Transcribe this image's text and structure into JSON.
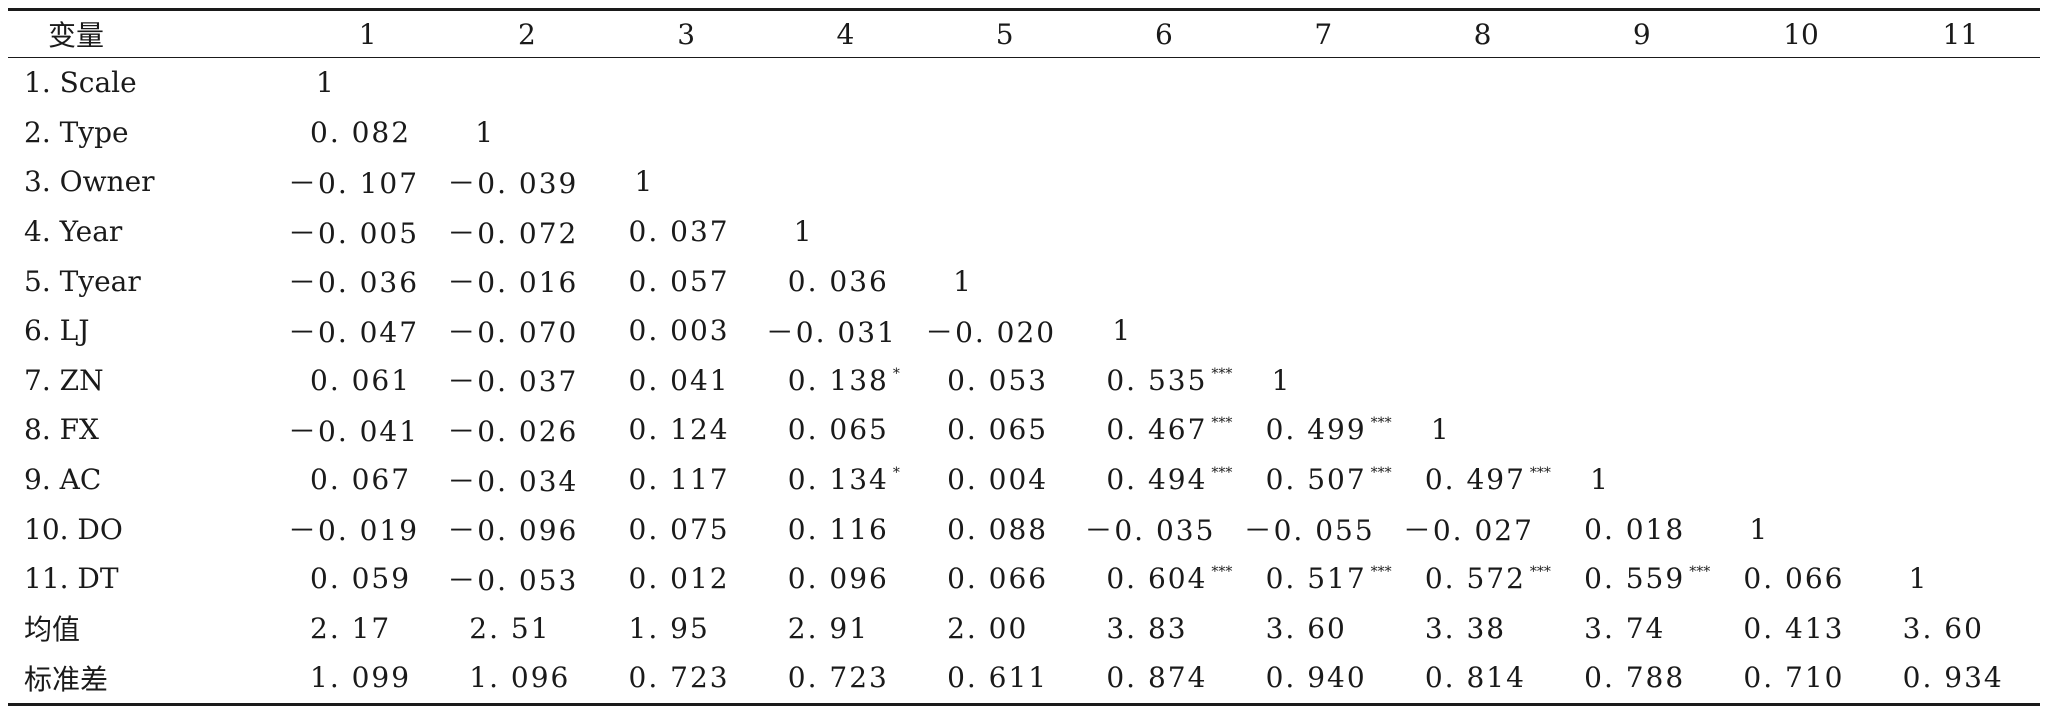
{
  "table": {
    "header": {
      "variable_label": "变量",
      "columns": [
        "1",
        "2",
        "3",
        "4",
        "5",
        "6",
        "7",
        "8",
        "9",
        "10",
        "11"
      ]
    },
    "rows": [
      {
        "label": "1. Scale",
        "cells": [
          {
            "v": "1"
          }
        ]
      },
      {
        "label": "2. Type",
        "cells": [
          {
            "v": "0. 082"
          },
          {
            "v": "1"
          }
        ]
      },
      {
        "label": "3. Owner",
        "cells": [
          {
            "v": "－0. 107"
          },
          {
            "v": "－0. 039"
          },
          {
            "v": "1"
          }
        ]
      },
      {
        "label": "4. Year",
        "cells": [
          {
            "v": "－0. 005"
          },
          {
            "v": "－0. 072"
          },
          {
            "v": "0. 037"
          },
          {
            "v": "1"
          }
        ]
      },
      {
        "label": "5. Tyear",
        "cells": [
          {
            "v": "－0. 036"
          },
          {
            "v": "－0. 016"
          },
          {
            "v": "0. 057"
          },
          {
            "v": "0. 036"
          },
          {
            "v": "1"
          }
        ]
      },
      {
        "label": "6. LJ",
        "cells": [
          {
            "v": "－0. 047"
          },
          {
            "v": "－0. 070"
          },
          {
            "v": "0. 003"
          },
          {
            "v": "－0. 031"
          },
          {
            "v": "－0. 020"
          },
          {
            "v": "1"
          }
        ]
      },
      {
        "label": "7. ZN",
        "cells": [
          {
            "v": "0. 061"
          },
          {
            "v": "－0. 037"
          },
          {
            "v": "0. 041"
          },
          {
            "v": "0. 138",
            "sig": "*"
          },
          {
            "v": "0. 053"
          },
          {
            "v": "0. 535",
            "sig": "***"
          },
          {
            "v": "1"
          }
        ]
      },
      {
        "label": "8. FX",
        "cells": [
          {
            "v": "－0. 041"
          },
          {
            "v": "－0. 026"
          },
          {
            "v": "0. 124"
          },
          {
            "v": "0. 065"
          },
          {
            "v": "0. 065"
          },
          {
            "v": "0. 467",
            "sig": "***"
          },
          {
            "v": "0. 499",
            "sig": "***"
          },
          {
            "v": "1"
          }
        ]
      },
      {
        "label": "9. AC",
        "cells": [
          {
            "v": "0. 067"
          },
          {
            "v": "－0. 034"
          },
          {
            "v": "0. 117"
          },
          {
            "v": "0. 134",
            "sig": "*"
          },
          {
            "v": "0. 004"
          },
          {
            "v": "0. 494",
            "sig": "***"
          },
          {
            "v": "0. 507",
            "sig": "***"
          },
          {
            "v": "0. 497",
            "sig": "***"
          },
          {
            "v": "1"
          }
        ]
      },
      {
        "label": "10. DO",
        "cells": [
          {
            "v": "－0. 019"
          },
          {
            "v": "－0. 096"
          },
          {
            "v": "0. 075"
          },
          {
            "v": "0. 116"
          },
          {
            "v": "0. 088"
          },
          {
            "v": "－0. 035"
          },
          {
            "v": "－0. 055"
          },
          {
            "v": "－0. 027"
          },
          {
            "v": "0. 018"
          },
          {
            "v": "1"
          }
        ]
      },
      {
        "label": "11. DT",
        "cells": [
          {
            "v": "0. 059"
          },
          {
            "v": "－0. 053"
          },
          {
            "v": "0. 012"
          },
          {
            "v": "0. 096"
          },
          {
            "v": "0. 066"
          },
          {
            "v": "0. 604",
            "sig": "***"
          },
          {
            "v": "0. 517",
            "sig": "***"
          },
          {
            "v": "0. 572",
            "sig": "***"
          },
          {
            "v": "0. 559",
            "sig": "***"
          },
          {
            "v": "0. 066"
          },
          {
            "v": "1"
          }
        ]
      },
      {
        "label": "均值",
        "cells": [
          {
            "v": "2. 17"
          },
          {
            "v": "2. 51"
          },
          {
            "v": "1. 95"
          },
          {
            "v": "2. 91"
          },
          {
            "v": "2. 00"
          },
          {
            "v": "3. 83"
          },
          {
            "v": "3. 60"
          },
          {
            "v": "3. 38"
          },
          {
            "v": "3. 74"
          },
          {
            "v": "0. 413"
          },
          {
            "v": "3. 60"
          }
        ]
      },
      {
        "label": "标准差",
        "cells": [
          {
            "v": "1. 099"
          },
          {
            "v": "1. 096"
          },
          {
            "v": "0. 723"
          },
          {
            "v": "0. 723"
          },
          {
            "v": "0. 611"
          },
          {
            "v": "0. 874"
          },
          {
            "v": "0. 940"
          },
          {
            "v": "0. 814"
          },
          {
            "v": "0. 788"
          },
          {
            "v": "0. 710"
          },
          {
            "v": "0. 934"
          }
        ]
      }
    ]
  }
}
